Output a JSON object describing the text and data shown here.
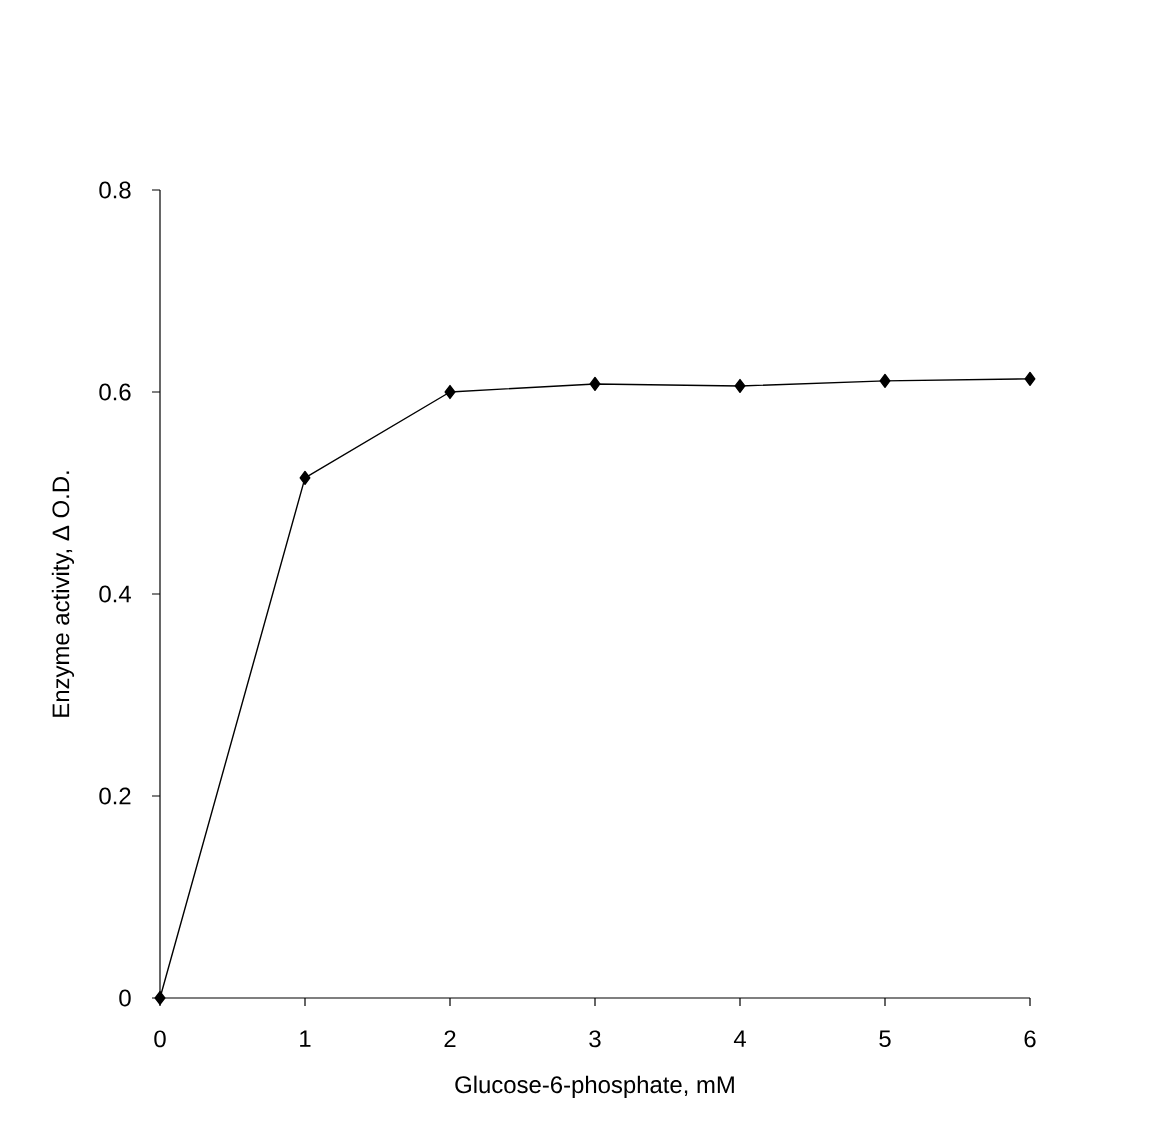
{
  "chart_data": {
    "type": "line",
    "xlabel": "Glucose-6-phosphate, mM",
    "ylabel": "Enzyme activity, Δ O.D.",
    "x": [
      0,
      1,
      2,
      3,
      4,
      5,
      6
    ],
    "series": [
      {
        "color": "#000000",
        "values": [
          0,
          0.515,
          0.6,
          0.608,
          0.606,
          0.611,
          0.613
        ]
      }
    ],
    "xlim": [
      0,
      6
    ],
    "xticks": [
      0,
      1,
      2,
      3,
      4,
      5,
      6
    ],
    "ylim": [
      0,
      0.8
    ],
    "yticks": [
      0,
      0.2,
      0.4,
      0.6,
      0.8
    ],
    "marker": "diamond",
    "line_style": "solid"
  }
}
